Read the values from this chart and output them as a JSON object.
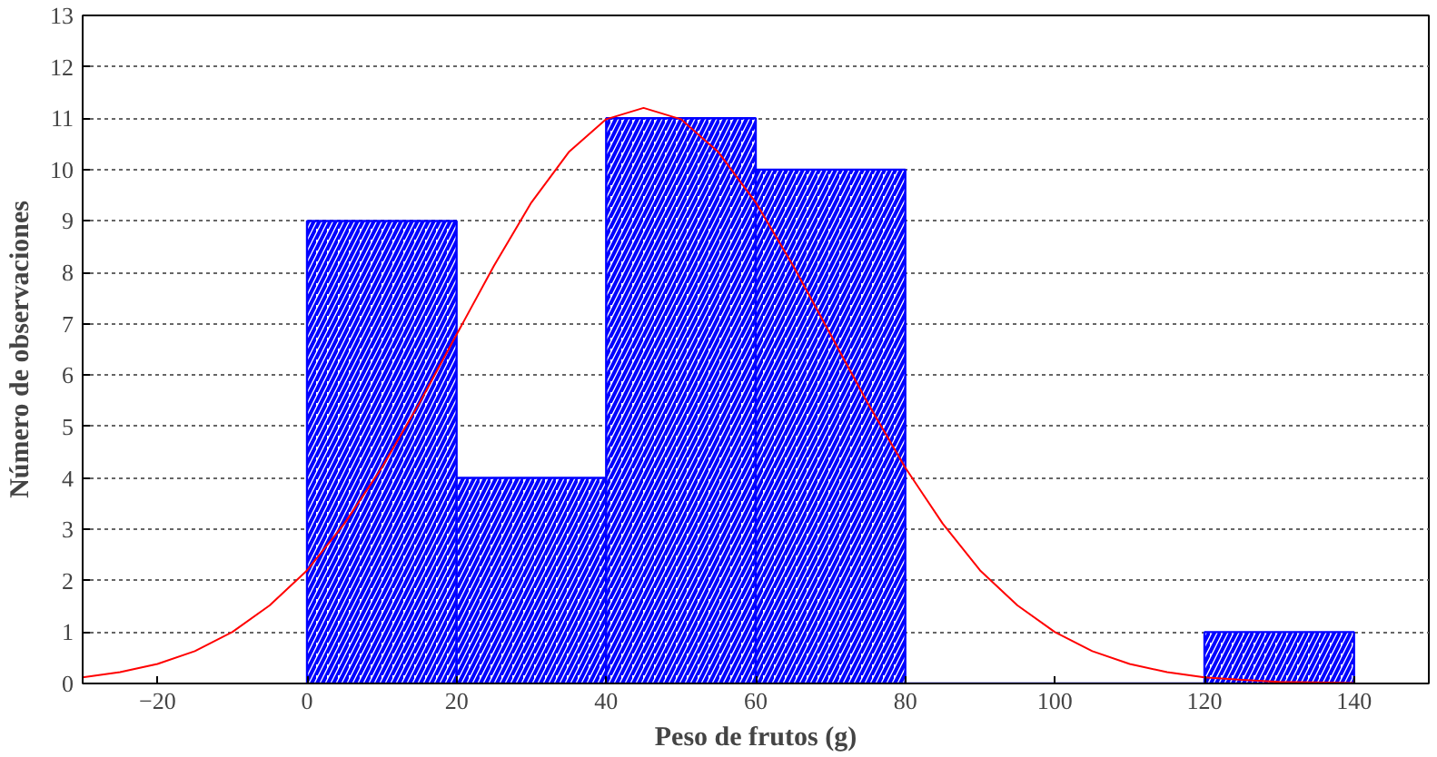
{
  "chart_data": {
    "type": "histogram",
    "xlabel": "Peso de frutos (g)",
    "ylabel": "Número de observaciones",
    "bins": [
      0,
      20,
      40,
      60,
      80,
      100,
      120,
      140
    ],
    "values": [
      9,
      4,
      11,
      10,
      0,
      0,
      1
    ],
    "color": "#0000ff",
    "series": [
      {
        "type": "line",
        "color": "#ff0000",
        "x": [
          -30,
          -25,
          -20,
          -15,
          -10,
          -5,
          0,
          5,
          10,
          15,
          20,
          25,
          30,
          35,
          40,
          45,
          50,
          55,
          60,
          65,
          70,
          75,
          80,
          85,
          90,
          95,
          100,
          105,
          110,
          115,
          120,
          125,
          130,
          140
        ],
        "values": [
          0.12,
          0.22,
          0.38,
          0.63,
          1.0,
          1.52,
          2.2,
          3.11,
          4.2,
          5.45,
          6.79,
          8.13,
          9.36,
          10.34,
          10.98,
          11.2,
          10.98,
          10.34,
          9.36,
          8.13,
          6.79,
          5.45,
          4.2,
          3.11,
          2.2,
          1.52,
          1.0,
          0.63,
          0.38,
          0.22,
          0.12,
          0.07,
          0.03,
          0.01
        ]
      }
    ],
    "xlim": [
      -30,
      150
    ],
    "xticks": [
      -20,
      0,
      20,
      40,
      60,
      80,
      100,
      120,
      140
    ],
    "ylim": [
      0,
      13
    ],
    "yticks": [
      0,
      1,
      2,
      3,
      4,
      5,
      6,
      7,
      8,
      9,
      10,
      11,
      12,
      13
    ],
    "grid": "y"
  }
}
